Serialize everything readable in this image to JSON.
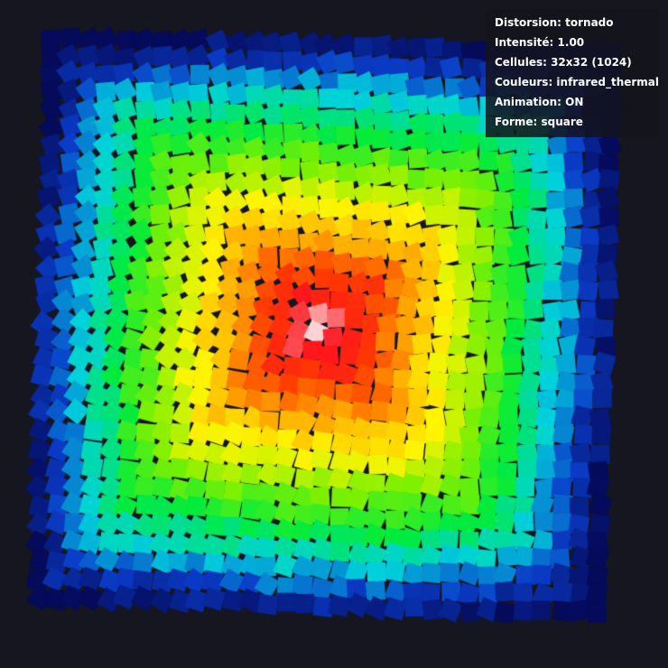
{
  "colors": {
    "background": "#151620",
    "panel_background": "rgba(20, 20, 28, 0.86)",
    "panel_text": "#ffffff"
  },
  "grid": {
    "columns": 32,
    "rows": 32,
    "distortion": "tornado",
    "intensity": 1.0,
    "color_scheme": "infrared_thermal",
    "shape": "square"
  },
  "info": {
    "distortion": "Distorsion: tornado",
    "intensity": "Intensité: 1.00",
    "cells": "Cellules: 32x32 (1024)",
    "colors": "Couleurs: infrared_thermal",
    "animation": "Animation: ON",
    "shape": "Forme: square"
  }
}
